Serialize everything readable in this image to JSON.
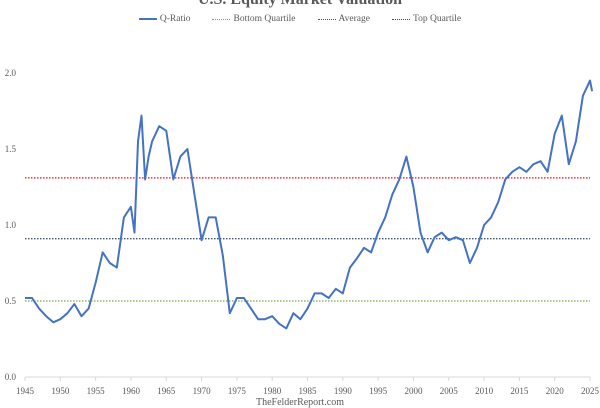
{
  "chart_data": {
    "type": "line",
    "title": "U.S. Equity Market Valuation",
    "footer": "TheFelderReport.com",
    "xlabel": "",
    "ylabel": "",
    "xlim": [
      1945,
      2025
    ],
    "ylim": [
      0,
      2.0
    ],
    "x_ticks": [
      "1945",
      "1950",
      "1955",
      "1960",
      "1965",
      "1970",
      "1975",
      "1980",
      "1985",
      "1990",
      "1995",
      "2000",
      "2005",
      "2010",
      "2015",
      "2020",
      "2025"
    ],
    "y_ticks": [
      "0.0",
      "0.5",
      "1.0",
      "1.5",
      "2.0"
    ],
    "grid": false,
    "legend_position": "top",
    "series": [
      {
        "name": "Q-Ratio",
        "style": "solid",
        "color": "#4472c4",
        "x": [
          1945,
          1946,
          1947,
          1948,
          1949,
          1950,
          1951,
          1952,
          1953,
          1954,
          1955,
          1956,
          1957,
          1958,
          1959,
          1960,
          1960.5,
          1961,
          1961.5,
          1962,
          1962.5,
          1963,
          1964,
          1965,
          1966,
          1967,
          1968,
          1969,
          1970,
          1971,
          1972,
          1973,
          1974,
          1975,
          1976,
          1977,
          1978,
          1979,
          1980,
          1981,
          1982,
          1983,
          1984,
          1985,
          1986,
          1987,
          1988,
          1989,
          1990,
          1991,
          1992,
          1993,
          1994,
          1995,
          1996,
          1997,
          1998,
          1999,
          2000,
          2001,
          2002,
          2003,
          2004,
          2005,
          2006,
          2007,
          2008,
          2009,
          2010,
          2011,
          2012,
          2013,
          2014,
          2015,
          2016,
          2017,
          2018,
          2019,
          2020,
          2021,
          2022,
          2023,
          2024,
          2025,
          2025.3
        ],
        "values": [
          0.52,
          0.52,
          0.45,
          0.4,
          0.36,
          0.38,
          0.42,
          0.48,
          0.4,
          0.45,
          0.62,
          0.82,
          0.75,
          0.72,
          1.05,
          1.12,
          0.95,
          1.55,
          1.72,
          1.3,
          1.45,
          1.55,
          1.65,
          1.62,
          1.3,
          1.45,
          1.5,
          1.2,
          0.9,
          1.05,
          1.05,
          0.8,
          0.42,
          0.52,
          0.52,
          0.45,
          0.38,
          0.38,
          0.4,
          0.35,
          0.32,
          0.42,
          0.38,
          0.45,
          0.55,
          0.55,
          0.52,
          0.58,
          0.55,
          0.72,
          0.78,
          0.85,
          0.82,
          0.95,
          1.05,
          1.2,
          1.3,
          1.45,
          1.25,
          0.95,
          0.82,
          0.92,
          0.95,
          0.9,
          0.92,
          0.9,
          0.75,
          0.85,
          1.0,
          1.05,
          1.15,
          1.3,
          1.35,
          1.38,
          1.35,
          1.4,
          1.42,
          1.35,
          1.6,
          1.72,
          1.4,
          1.55,
          1.85,
          1.95,
          1.88
        ]
      },
      {
        "name": "Bottom Quartile",
        "style": "dotted",
        "color": "#70ad47",
        "values": [
          0.5
        ]
      },
      {
        "name": "Average",
        "style": "dotted",
        "color": "#44546a",
        "values": [
          0.91
        ]
      },
      {
        "name": "Top Quartile",
        "style": "dotted",
        "color": "#ff0000",
        "values": [
          1.31
        ]
      }
    ]
  }
}
